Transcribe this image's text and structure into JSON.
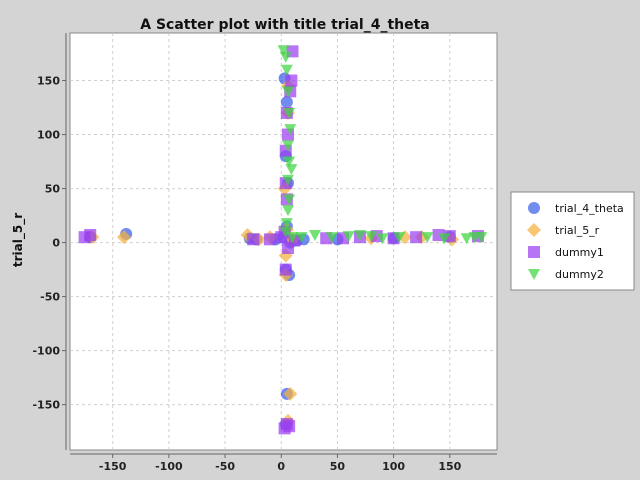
{
  "chart_data": {
    "type": "scatter",
    "title": "A Scatter plot with title trial_4_theta",
    "xlabel": "",
    "ylabel": "trial_5_r",
    "xlim": [
      -188,
      192
    ],
    "ylim": [
      -192,
      194
    ],
    "xticks": [
      -150,
      -100,
      -50,
      0,
      50,
      100,
      150
    ],
    "yticks": [
      -150,
      -100,
      -50,
      0,
      50,
      100,
      150
    ],
    "grid": true,
    "legend_position": "right",
    "series": [
      {
        "name": "trial_4_theta",
        "color": "#3a5ee8",
        "marker": "circle",
        "points": [
          [
            -170,
            5
          ],
          [
            -138,
            8
          ],
          [
            -28,
            4
          ],
          [
            -22,
            3
          ],
          [
            -5,
            3
          ],
          [
            2,
            5
          ],
          [
            3,
            152
          ],
          [
            5,
            130
          ],
          [
            4,
            80
          ],
          [
            6,
            55
          ],
          [
            5,
            15
          ],
          [
            4,
            -25
          ],
          [
            7,
            -30
          ],
          [
            5,
            -140
          ],
          [
            4,
            -168
          ],
          [
            8,
            0
          ],
          [
            14,
            2
          ],
          [
            20,
            3
          ],
          [
            50,
            3
          ],
          [
            100,
            4
          ],
          [
            150,
            5
          ]
        ]
      },
      {
        "name": "trial_5_r",
        "color": "#f7b23f",
        "marker": "diamond",
        "points": [
          [
            -168,
            5
          ],
          [
            -140,
            5
          ],
          [
            -30,
            7
          ],
          [
            -20,
            3
          ],
          [
            -10,
            5
          ],
          [
            5,
            12
          ],
          [
            6,
            120
          ],
          [
            6,
            145
          ],
          [
            3,
            50
          ],
          [
            4,
            -12
          ],
          [
            4,
            -30
          ],
          [
            8,
            -140
          ],
          [
            6,
            -165
          ],
          [
            10,
            3
          ],
          [
            80,
            4
          ],
          [
            110,
            5
          ],
          [
            125,
            5
          ],
          [
            152,
            3
          ]
        ]
      },
      {
        "name": "dummy1",
        "color": "#9b3ef0",
        "marker": "square",
        "points": [
          [
            -175,
            5
          ],
          [
            -170,
            7
          ],
          [
            -25,
            3
          ],
          [
            -10,
            3
          ],
          [
            0,
            5
          ],
          [
            3,
            10
          ],
          [
            5,
            40
          ],
          [
            4,
            55
          ],
          [
            4,
            85
          ],
          [
            6,
            100
          ],
          [
            5,
            120
          ],
          [
            8,
            140
          ],
          [
            9,
            150
          ],
          [
            10,
            177
          ],
          [
            4,
            -25
          ],
          [
            6,
            -5
          ],
          [
            5,
            -168
          ],
          [
            3,
            -172
          ],
          [
            7,
            -170
          ],
          [
            12,
            2
          ],
          [
            40,
            4
          ],
          [
            55,
            4
          ],
          [
            70,
            5
          ],
          [
            85,
            6
          ],
          [
            100,
            4
          ],
          [
            120,
            5
          ],
          [
            140,
            7
          ],
          [
            150,
            6
          ],
          [
            175,
            6
          ]
        ]
      },
      {
        "name": "dummy2",
        "color": "#3ed63e",
        "marker": "triangle-down",
        "points": [
          [
            2,
            178
          ],
          [
            4,
            172
          ],
          [
            5,
            160
          ],
          [
            6,
            140
          ],
          [
            7,
            120
          ],
          [
            8,
            105
          ],
          [
            6,
            90
          ],
          [
            7,
            75
          ],
          [
            9,
            68
          ],
          [
            6,
            58
          ],
          [
            7,
            40
          ],
          [
            6,
            30
          ],
          [
            5,
            18
          ],
          [
            4,
            10
          ],
          [
            10,
            5
          ],
          [
            18,
            5
          ],
          [
            30,
            7
          ],
          [
            45,
            5
          ],
          [
            60,
            6
          ],
          [
            70,
            7
          ],
          [
            80,
            6
          ],
          [
            90,
            4
          ],
          [
            105,
            5
          ],
          [
            130,
            5
          ],
          [
            145,
            4
          ],
          [
            165,
            4
          ],
          [
            172,
            5
          ],
          [
            178,
            5
          ]
        ]
      }
    ]
  }
}
